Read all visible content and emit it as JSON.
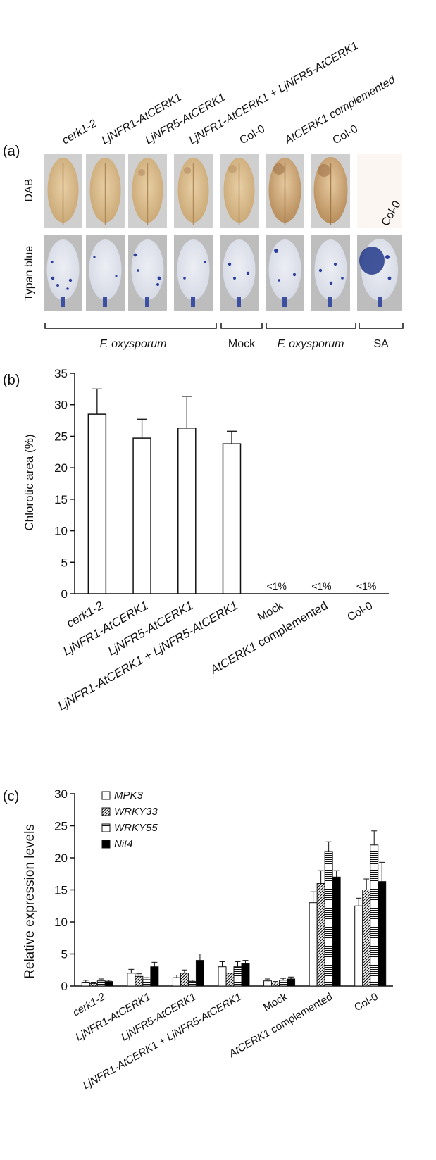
{
  "panel_a": {
    "label": "(a)",
    "columns": [
      "cerk1-2",
      "LjNFR1-AtCERK1",
      "LjNFR5-AtCERK1",
      "LjNFR1-AtCERK1 + LjNFR5-AtCERK1",
      "Col-0",
      "AtCERK1 complemented",
      "Col-0"
    ],
    "row_labels": [
      "DAB",
      "Typan blue"
    ],
    "sa_col_label": "Col-0",
    "brackets": [
      "F. oxysporum",
      "Mock",
      "F. oxysporum",
      "SA"
    ]
  },
  "chart_data": [
    {
      "type": "bar",
      "panel_label": "(b)",
      "ylabel": "Chlorotic area (%)",
      "ylim": [
        0,
        35
      ],
      "yticks": [
        0,
        5,
        10,
        15,
        20,
        25,
        30,
        35
      ],
      "categories": [
        "cerk1-2",
        "LjNFR1-AtCERK1",
        "LjNFR5-AtCERK1",
        "LjNFR1-AtCERK1 + LjNFR5-AtCERK1",
        "Mock",
        "AtCERK1 complemented",
        "Col-0"
      ],
      "values": [
        28.5,
        24.7,
        26.3,
        23.8,
        null,
        null,
        null
      ],
      "errors": [
        4.0,
        3.0,
        5.0,
        2.0,
        null,
        null,
        null
      ],
      "value_labels": [
        "",
        "",
        "",
        "",
        "<1%",
        "<1%",
        "<1%"
      ]
    },
    {
      "type": "bar",
      "panel_label": "(c)",
      "ylabel": "Relative expression levels",
      "ylim": [
        0,
        30
      ],
      "yticks": [
        0,
        5,
        10,
        15,
        20,
        25,
        30
      ],
      "categories": [
        "cerk1-2",
        "LjNFR1-AtCERK1",
        "LjNFR5-AtCERK1",
        "LjNFR1-AtCERK1 + LjNFR5-AtCERK1",
        "Mock",
        "AtCERK1 complemented",
        "Col-0"
      ],
      "legend_position": "top-left",
      "series": [
        {
          "name": "MPK3",
          "values": [
            0.6,
            2.0,
            1.3,
            3.0,
            0.8,
            13.0,
            12.5
          ],
          "errors": [
            0.3,
            0.6,
            0.4,
            0.8,
            0.3,
            1.7,
            1.2
          ]
        },
        {
          "name": "WRKY33",
          "values": [
            0.4,
            1.5,
            2.0,
            2.0,
            0.5,
            16.0,
            15.0
          ],
          "errors": [
            0.2,
            0.4,
            0.5,
            0.8,
            0.2,
            2.0,
            1.7
          ]
        },
        {
          "name": "WRKY55",
          "values": [
            0.8,
            1.0,
            0.7,
            3.0,
            0.9,
            21.0,
            22.0
          ],
          "errors": [
            0.3,
            0.3,
            0.2,
            0.8,
            0.3,
            1.5,
            2.2
          ]
        },
        {
          "name": "Nit4",
          "values": [
            0.7,
            3.0,
            4.0,
            3.5,
            1.1,
            17.0,
            16.3
          ],
          "errors": [
            0.2,
            0.7,
            1.0,
            0.5,
            0.3,
            1.0,
            3.0
          ]
        }
      ]
    }
  ]
}
